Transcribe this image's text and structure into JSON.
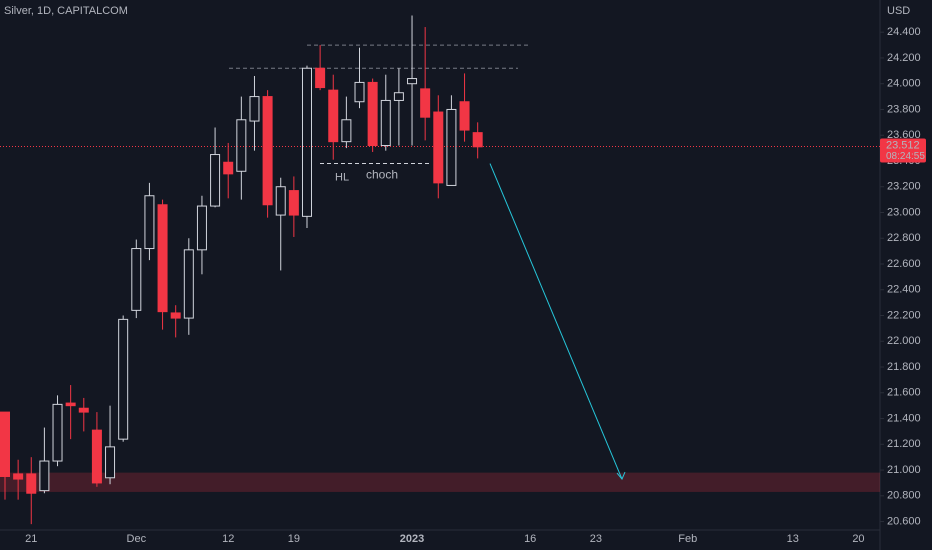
{
  "chart_data": {
    "type": "candlestick",
    "title": "Silver, 1D, CAPITALCOM",
    "y_unit": "USD",
    "categories": [
      null,
      null,
      "21",
      null,
      null,
      null,
      null,
      null,
      null,
      null,
      "Dec",
      null,
      null,
      null,
      null,
      null,
      null,
      "12",
      null,
      null,
      null,
      null,
      "19",
      null,
      null,
      null,
      null,
      null,
      null,
      null,
      null,
      "2023",
      null,
      null,
      null,
      null,
      null,
      null,
      null,
      null,
      "16",
      null,
      null,
      null,
      null,
      "23",
      null,
      null,
      null,
      null,
      null,
      null,
      "Feb",
      null,
      null,
      null,
      null,
      null,
      null,
      null,
      "13",
      null,
      null,
      null,
      null,
      "20",
      null
    ],
    "open": [
      21.45,
      20.97,
      20.97,
      20.84,
      21.07,
      21.52,
      21.48,
      21.31,
      20.94,
      21.24,
      22.24,
      22.72,
      23.06,
      22.22,
      22.18,
      22.71,
      23.05,
      23.39,
      23.32,
      23.71,
      23.9,
      22.98,
      23.17,
      22.97,
      24.12,
      23.95,
      23.55,
      23.86,
      24.01,
      23.52,
      23.87,
      24.0,
      23.96,
      23.78,
      23.21,
      23.86,
      23.62,
      null,
      null,
      null,
      null,
      null,
      null,
      null,
      null,
      null,
      null,
      null,
      null,
      null,
      null,
      null,
      null,
      null,
      null,
      null,
      null,
      null,
      null,
      null,
      null,
      null,
      null,
      null,
      null,
      null,
      null
    ],
    "high": [
      21.45,
      21.08,
      21.1,
      21.33,
      21.58,
      21.66,
      21.56,
      21.45,
      21.5,
      22.2,
      22.79,
      23.23,
      23.1,
      22.28,
      22.8,
      23.13,
      23.66,
      23.54,
      23.9,
      24.06,
      23.95,
      23.27,
      23.28,
      24.14,
      24.3,
      24.07,
      23.9,
      24.28,
      24.04,
      24.07,
      24.12,
      24.53,
      24.44,
      23.91,
      23.91,
      24.08,
      23.7,
      null,
      null,
      null,
      null,
      null,
      null,
      null,
      null,
      null,
      null,
      null,
      null,
      null,
      null,
      null,
      null,
      null,
      null,
      null,
      null,
      null,
      null,
      null,
      null,
      null,
      null,
      null,
      null,
      null,
      null
    ],
    "low": [
      20.77,
      20.77,
      20.58,
      20.82,
      21.03,
      21.24,
      21.3,
      20.87,
      20.89,
      21.22,
      22.18,
      22.63,
      22.09,
      22.03,
      22.05,
      22.52,
      23.04,
      23.11,
      23.1,
      23.48,
      22.96,
      22.55,
      22.81,
      22.88,
      23.95,
      23.41,
      23.5,
      23.81,
      23.47,
      23.48,
      23.52,
      23.52,
      23.56,
      23.11,
      23.21,
      23.55,
      23.42,
      null,
      null,
      null,
      null,
      null,
      null,
      null,
      null,
      null,
      null,
      null,
      null,
      null,
      null,
      null,
      null,
      null,
      null,
      null,
      null,
      null,
      null,
      null,
      null,
      null,
      null,
      null,
      null,
      null,
      null
    ],
    "close": [
      20.95,
      20.93,
      20.82,
      21.07,
      21.51,
      21.5,
      21.45,
      20.9,
      21.18,
      22.17,
      22.72,
      23.13,
      22.23,
      22.18,
      22.71,
      23.05,
      23.45,
      23.3,
      23.72,
      23.9,
      23.06,
      23.2,
      22.98,
      24.12,
      23.97,
      23.55,
      23.72,
      24.01,
      23.52,
      23.87,
      23.93,
      24.04,
      23.74,
      23.23,
      23.8,
      23.64,
      23.51,
      null,
      null,
      null,
      null,
      null,
      null,
      null,
      null,
      null,
      null,
      null,
      null,
      null,
      null,
      null,
      null,
      null,
      null,
      null,
      null,
      null,
      null,
      null,
      null,
      null,
      null,
      null,
      null,
      null,
      null
    ],
    "up_color": "#d1d4dc",
    "down_color": "#f23645",
    "ylim": [
      20.55,
      24.65
    ],
    "yticks": [
      {
        "value": 20.6,
        "label": "20.600"
      },
      {
        "value": 20.8,
        "label": "20.800"
      },
      {
        "value": 21.0,
        "label": "21.000"
      },
      {
        "value": 21.2,
        "label": "21.200"
      },
      {
        "value": 21.4,
        "label": "21.400"
      },
      {
        "value": 21.6,
        "label": "21.600"
      },
      {
        "value": 21.8,
        "label": "21.800"
      },
      {
        "value": 22.0,
        "label": "22.000"
      },
      {
        "value": 22.2,
        "label": "22.200"
      },
      {
        "value": 22.4,
        "label": "22.400"
      },
      {
        "value": 22.6,
        "label": "22.600"
      },
      {
        "value": 22.8,
        "label": "22.800"
      },
      {
        "value": 23.0,
        "label": "23.000"
      },
      {
        "value": 23.2,
        "label": "23.200"
      },
      {
        "value": 23.4,
        "label": "23.400"
      },
      {
        "value": 23.6,
        "label": "23.600"
      },
      {
        "value": 23.8,
        "label": "23.800"
      },
      {
        "value": 24.0,
        "label": "24.000"
      },
      {
        "value": 24.2,
        "label": "24.200"
      },
      {
        "value": 24.4,
        "label": "24.400"
      }
    ],
    "last_price": 23.512,
    "countdown": "08:24:55",
    "dashed_levels": [
      24.3,
      24.12
    ],
    "choch_level": 23.38,
    "annotations": [
      "HL",
      "choch"
    ],
    "zone": [
      20.83,
      20.98
    ],
    "arrow": [
      23.38,
      20.93
    ]
  }
}
